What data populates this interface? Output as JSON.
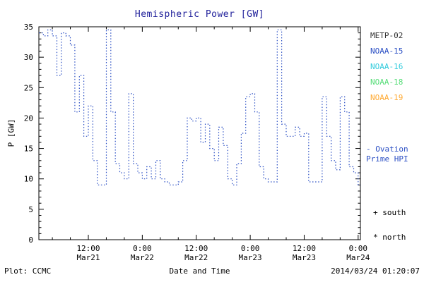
{
  "title": "Hemispheric Power [GW]",
  "legend": {
    "satellites": [
      {
        "label": "METP-02",
        "color": "#333333"
      },
      {
        "label": "NOAA-15",
        "color": "#2b4fc4"
      },
      {
        "label": "NOAA-16",
        "color": "#33ccdd"
      },
      {
        "label": "NOAA-18",
        "color": "#55dd77"
      },
      {
        "label": "NOAA-19",
        "color": "#ffaa33"
      }
    ],
    "ovation": {
      "line1": "- Ovation",
      "line2": "Prime HPI",
      "color": "#2b4fc4"
    },
    "south_label": "+ south",
    "north_label": "* north"
  },
  "footer": {
    "left": "Plot: CCMC",
    "center": "Date and Time",
    "right": "2014/03/24 01:20:07"
  },
  "chart_data": {
    "type": "line",
    "step": true,
    "title": "Hemispheric Power [GW]",
    "ylabel": "P [GW]",
    "xlabel": "Date and Time",
    "ylim": [
      0,
      35
    ],
    "y_ticks": [
      0,
      5,
      10,
      15,
      20,
      25,
      30,
      35
    ],
    "x_domain_hours": [
      1,
      72.5
    ],
    "x_minor_step_hours": 4,
    "x_ticks": [
      {
        "t": 12,
        "time": "12:00",
        "date": "Mar21"
      },
      {
        "t": 24,
        "time": "0:00",
        "date": "Mar22"
      },
      {
        "t": 36,
        "time": "12:00",
        "date": "Mar22"
      },
      {
        "t": 48,
        "time": "0:00",
        "date": "Mar23"
      },
      {
        "t": 60,
        "time": "12:00",
        "date": "Mar23"
      },
      {
        "t": 72,
        "time": "0:00",
        "date": "Mar24"
      }
    ],
    "grid": false,
    "legend_position": "right",
    "series": [
      {
        "name": "Hemispheric Power (Ovation Prime HPI)",
        "color": "#2b4fc4",
        "style": "dotted",
        "x_hours": [
          1,
          2,
          3,
          4,
          5,
          6,
          7,
          8,
          9,
          10,
          11,
          12,
          13,
          14,
          15,
          16,
          17,
          18,
          19,
          20,
          21,
          22,
          23,
          24,
          25,
          26,
          27,
          28,
          29,
          30,
          31,
          32,
          33,
          34,
          35,
          36,
          37,
          38,
          39,
          40,
          41,
          42,
          43,
          44,
          45,
          46,
          47,
          48,
          49,
          50,
          51,
          52,
          53,
          54,
          55,
          56,
          57,
          58,
          59,
          60,
          61,
          62,
          63,
          64,
          65,
          66,
          67,
          68,
          69,
          70,
          71,
          72
        ],
        "values": [
          34,
          33.5,
          34.5,
          33.5,
          27,
          34,
          33.5,
          32,
          21,
          27,
          17,
          22,
          13,
          9,
          9,
          34.5,
          21,
          12.5,
          11,
          10,
          24,
          12.5,
          11,
          10,
          12,
          10,
          13,
          10,
          9.5,
          9,
          9,
          9.5,
          13,
          20,
          19.5,
          20,
          16,
          19,
          15,
          13,
          18.5,
          15.5,
          10,
          9,
          12.5,
          17.5,
          23.5,
          24,
          21,
          12,
          10,
          9.5,
          9.5,
          34.5,
          19,
          17,
          17,
          18.5,
          17,
          17.5,
          9.5,
          9.5,
          9.5,
          23.5,
          17,
          13,
          11.5,
          23.5,
          21,
          12,
          11,
          9
        ]
      }
    ]
  }
}
